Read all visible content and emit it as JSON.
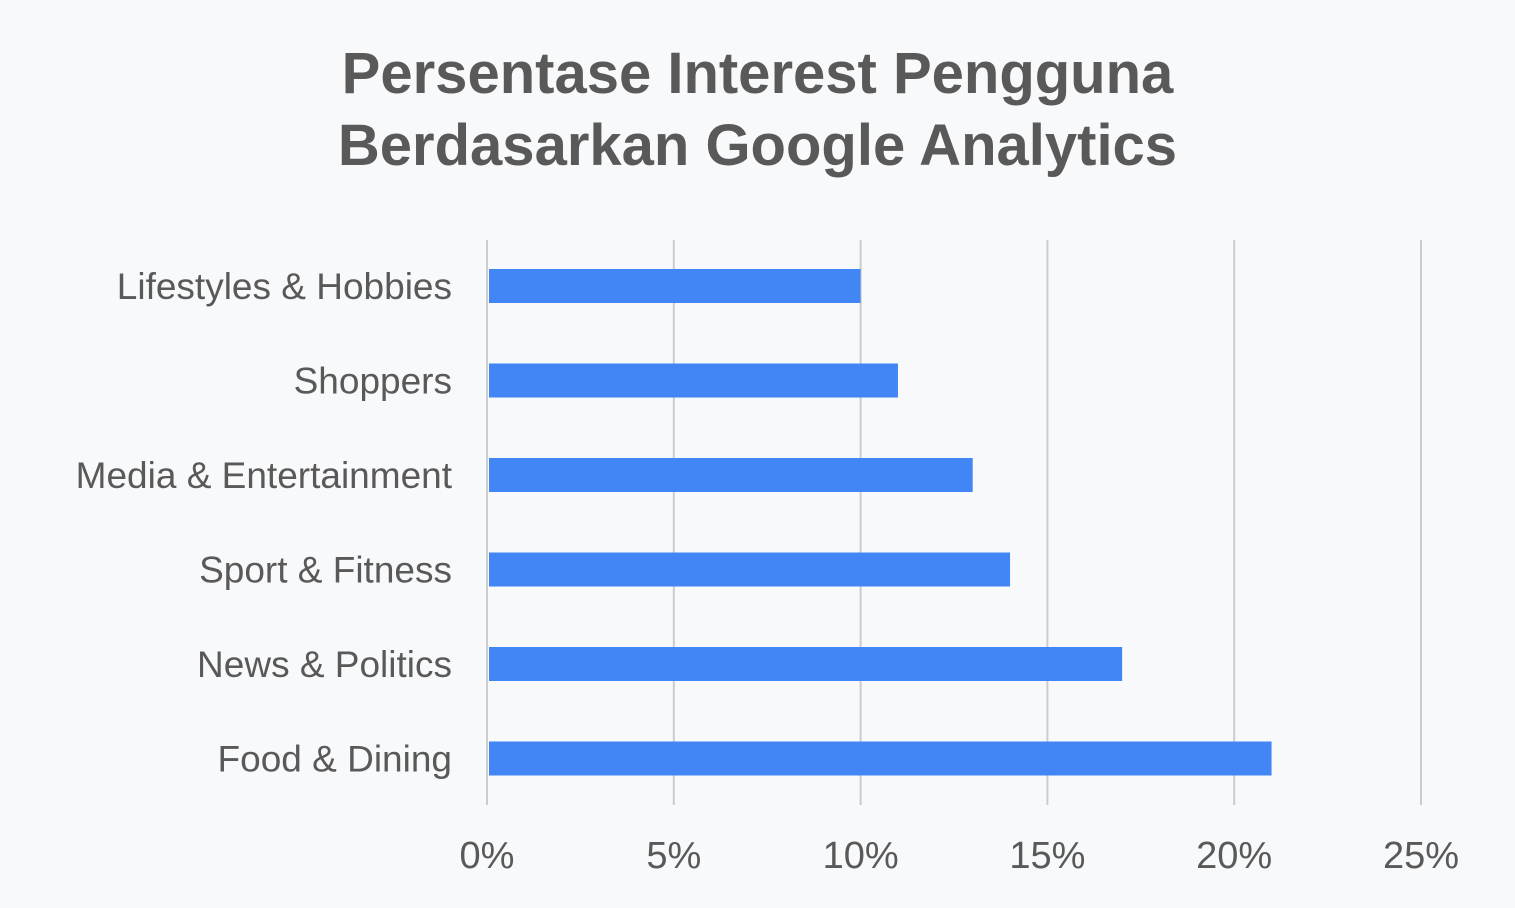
{
  "chart_data": {
    "type": "bar",
    "orientation": "horizontal",
    "title_lines": [
      "Persentase Interest Pengguna",
      "Berdasarkan Google Analytics"
    ],
    "categories": [
      "Lifestyles & Hobbies",
      "Shoppers",
      "Media & Entertainment",
      "Sport & Fitness",
      "News & Politics",
      "Food & Dining"
    ],
    "values": [
      10,
      11,
      13,
      14,
      17,
      21
    ],
    "xlim": [
      0,
      25
    ],
    "x_ticks": [
      0,
      5,
      10,
      15,
      20,
      25
    ],
    "x_tick_labels": [
      "0%",
      "5%",
      "10%",
      "15%",
      "20%",
      "25%"
    ],
    "grid": true,
    "legend": "none",
    "bar_color": "#4285f4",
    "grid_color": "#cccccc",
    "text_color": "#595959"
  }
}
